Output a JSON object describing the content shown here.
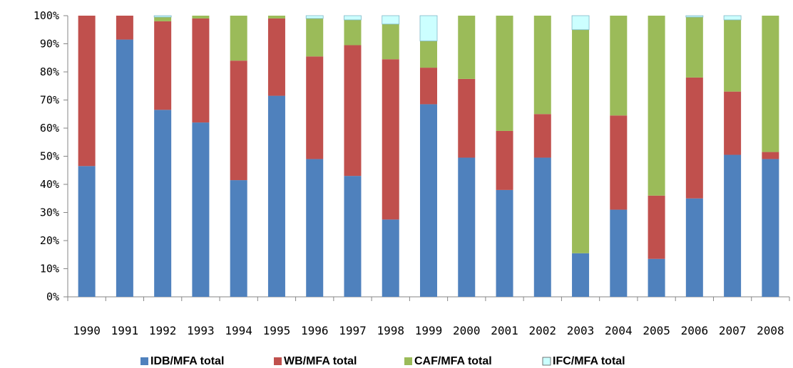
{
  "chart_data": {
    "type": "bar",
    "stacked": true,
    "percent": true,
    "categories": [
      "1990",
      "1991",
      "1992",
      "1993",
      "1994",
      "1995",
      "1996",
      "1997",
      "1998",
      "1999",
      "2000",
      "2001",
      "2002",
      "2003",
      "2004",
      "2005",
      "2006",
      "2007",
      "2008"
    ],
    "y_ticks": [
      "0%",
      "10%",
      "20%",
      "30%",
      "40%",
      "50%",
      "60%",
      "70%",
      "80%",
      "90%",
      "100%"
    ],
    "ylim": [
      0,
      100
    ],
    "grid": false,
    "legend_position": "bottom",
    "series": [
      {
        "name": "IDB/MFA total",
        "color": "#4F81BD",
        "values": [
          46.5,
          91.5,
          66.5,
          62,
          41.5,
          71.5,
          49,
          43,
          27.5,
          68.5,
          49.5,
          38,
          49.5,
          15.5,
          31,
          13.5,
          35,
          50.5,
          49
        ]
      },
      {
        "name": "WB/MFA total",
        "color": "#C0504D",
        "values": [
          53.5,
          8.5,
          31.5,
          37,
          42.5,
          27.5,
          36.5,
          46.5,
          57,
          13,
          28,
          21,
          15.5,
          0,
          33.5,
          22.5,
          43,
          22.5,
          2.5
        ]
      },
      {
        "name": "CAF/MFA total",
        "color": "#9BBB59",
        "values": [
          0,
          0,
          1.5,
          1,
          16,
          1,
          13.5,
          9,
          12.5,
          9.5,
          22.5,
          41,
          35,
          79.5,
          35.5,
          64,
          21.5,
          25.5,
          48.5
        ]
      },
      {
        "name": "IFC/MFA total",
        "color": "#CCFFFF",
        "values": [
          0,
          0,
          0.5,
          0,
          0,
          0,
          1,
          1.5,
          3,
          9,
          0,
          0,
          0,
          5,
          0,
          0,
          0.5,
          1.5,
          0
        ]
      }
    ]
  }
}
